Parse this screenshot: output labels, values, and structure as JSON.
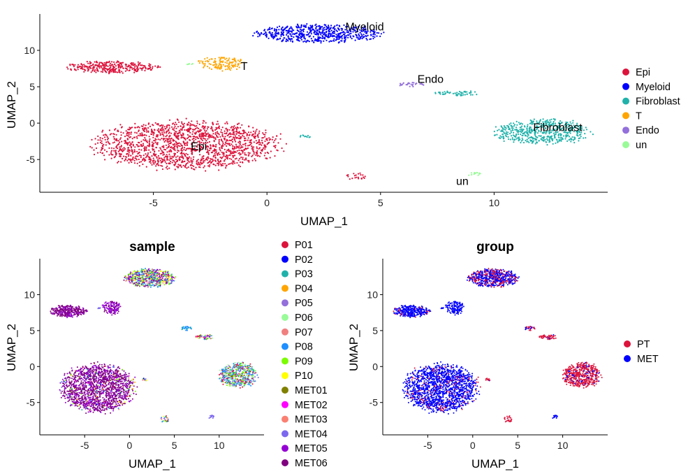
{
  "chart_data": [
    {
      "type": "scatter",
      "title": "",
      "xlabel": "UMAP_1",
      "ylabel": "UMAP_2",
      "xlim": [
        -10,
        15
      ],
      "ylim": [
        -9.5,
        15
      ],
      "xticks": [
        -5,
        0,
        5,
        10
      ],
      "yticks": [
        -5,
        0,
        5,
        10
      ],
      "grid": false,
      "legend_position": "right",
      "legend": [
        {
          "name": "Epi",
          "color": "#DC143C"
        },
        {
          "name": "Myeloid",
          "color": "#0000FF"
        },
        {
          "name": "Fibroblast",
          "color": "#20B2AA"
        },
        {
          "name": "T",
          "color": "#FFA500"
        },
        {
          "name": "Endo",
          "color": "#9370DB"
        },
        {
          "name": "un",
          "color": "#98FB98"
        }
      ],
      "annotations": [
        {
          "text": "Myeloid",
          "x": 4.3,
          "y": 13.2
        },
        {
          "text": "T",
          "x": -1.0,
          "y": 7.8
        },
        {
          "text": "Endo",
          "x": 7.2,
          "y": 6.0
        },
        {
          "text": "Fibroblast",
          "x": 12.8,
          "y": -0.6
        },
        {
          "text": "Epi",
          "x": -3.0,
          "y": -3.2
        },
        {
          "text": "un",
          "x": 8.6,
          "y": -8.0
        }
      ],
      "clusters": [
        {
          "group": "Epi",
          "shape": "blob",
          "cx": -3.5,
          "cy": -3.0,
          "rx": 4.0,
          "ry": 3.2,
          "n": 1600
        },
        {
          "group": "Epi",
          "shape": "blob",
          "cx": -6.8,
          "cy": 7.7,
          "rx": 1.9,
          "ry": 0.8,
          "n": 320
        },
        {
          "group": "Epi",
          "shape": "blob",
          "cx": 3.9,
          "cy": -7.3,
          "rx": 0.5,
          "ry": 0.5,
          "n": 22
        },
        {
          "group": "Myeloid",
          "shape": "blob",
          "cx": 2.3,
          "cy": 12.3,
          "rx": 2.7,
          "ry": 1.2,
          "n": 600
        },
        {
          "group": "Fibroblast",
          "shape": "blob",
          "cx": 12.1,
          "cy": -1.2,
          "rx": 2.0,
          "ry": 1.7,
          "n": 520
        },
        {
          "group": "Fibroblast",
          "shape": "blob",
          "cx": 8.3,
          "cy": 4.1,
          "rx": 1.0,
          "ry": 0.35,
          "n": 55
        },
        {
          "group": "Fibroblast",
          "shape": "blob",
          "cx": 1.7,
          "cy": -1.8,
          "rx": 0.3,
          "ry": 0.2,
          "n": 10
        },
        {
          "group": "T",
          "shape": "blob",
          "cx": -2.0,
          "cy": 8.2,
          "rx": 1.0,
          "ry": 0.9,
          "n": 130
        },
        {
          "group": "Endo",
          "shape": "blob",
          "cx": 6.3,
          "cy": 5.3,
          "rx": 0.6,
          "ry": 0.3,
          "n": 28
        },
        {
          "group": "un",
          "shape": "blob",
          "cx": 9.1,
          "cy": -7.0,
          "rx": 0.35,
          "ry": 0.25,
          "n": 14
        },
        {
          "group": "un",
          "shape": "blob",
          "cx": -3.3,
          "cy": 8.1,
          "rx": 0.2,
          "ry": 0.12,
          "n": 6
        }
      ]
    },
    {
      "type": "scatter",
      "title": "sample",
      "xlabel": "UMAP_1",
      "ylabel": "UMAP_2",
      "xlim": [
        -10,
        15
      ],
      "ylim": [
        -9.5,
        15
      ],
      "xticks": [
        -5,
        0,
        5,
        10
      ],
      "yticks": [
        -5,
        0,
        5,
        10
      ],
      "grid": false,
      "legend_position": "right",
      "legend": [
        {
          "name": "P01",
          "color": "#DC143C"
        },
        {
          "name": "P02",
          "color": "#0000FF"
        },
        {
          "name": "P03",
          "color": "#20B2AA"
        },
        {
          "name": "P04",
          "color": "#FFA500"
        },
        {
          "name": "P05",
          "color": "#9370DB"
        },
        {
          "name": "P06",
          "color": "#98FB98"
        },
        {
          "name": "P07",
          "color": "#F08080"
        },
        {
          "name": "P08",
          "color": "#1E90FF"
        },
        {
          "name": "P09",
          "color": "#7CFC00"
        },
        {
          "name": "P10",
          "color": "#FFFF00"
        },
        {
          "name": "MET01",
          "color": "#808000"
        },
        {
          "name": "MET02",
          "color": "#FF00FF"
        },
        {
          "name": "MET03",
          "color": "#FA8072"
        },
        {
          "name": "MET04",
          "color": "#7B68EE"
        },
        {
          "name": "MET05",
          "color": "#9400D3"
        },
        {
          "name": "MET06",
          "color": "#800080"
        }
      ]
    },
    {
      "type": "scatter",
      "title": "group",
      "xlabel": "UMAP_1",
      "ylabel": "UMAP_2",
      "xlim": [
        -10,
        15
      ],
      "ylim": [
        -9.5,
        15
      ],
      "xticks": [
        -5,
        0,
        5,
        10
      ],
      "yticks": [
        -5,
        0,
        5,
        10
      ],
      "grid": false,
      "legend_position": "right",
      "legend": [
        {
          "name": "PT",
          "color": "#DC143C"
        },
        {
          "name": "MET",
          "color": "#0000FF"
        }
      ]
    }
  ]
}
